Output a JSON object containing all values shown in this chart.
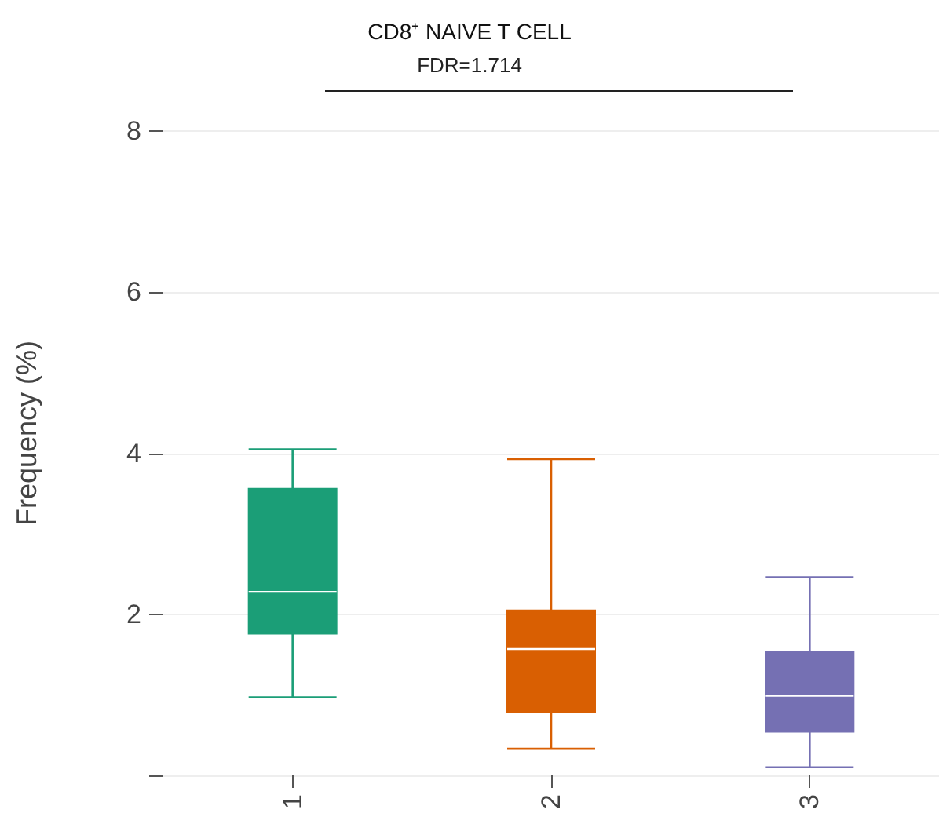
{
  "chart_data": {
    "type": "box",
    "title": "CD8⁺ NAIVE T CELL",
    "ylabel": "Frequency (%)",
    "categories": [
      "1",
      "2",
      "3"
    ],
    "colors": [
      "#1b9e77",
      "#d95f02",
      "#7570b3"
    ],
    "boxes": [
      {
        "low": 0.97,
        "q1": 1.76,
        "median": 2.28,
        "q3": 3.56,
        "high": 4.05
      },
      {
        "low": 0.33,
        "q1": 0.79,
        "median": 1.57,
        "q3": 2.05,
        "high": 3.93
      },
      {
        "low": 0.1,
        "q1": 0.54,
        "median": 0.99,
        "q3": 1.53,
        "high": 2.46
      }
    ],
    "ylim": [
      0,
      8.5
    ],
    "yticks": [
      {
        "value": 0,
        "label": null
      },
      2,
      4,
      6,
      8
    ],
    "annotations": [
      "FDR=1.714"
    ],
    "grid": "y"
  }
}
